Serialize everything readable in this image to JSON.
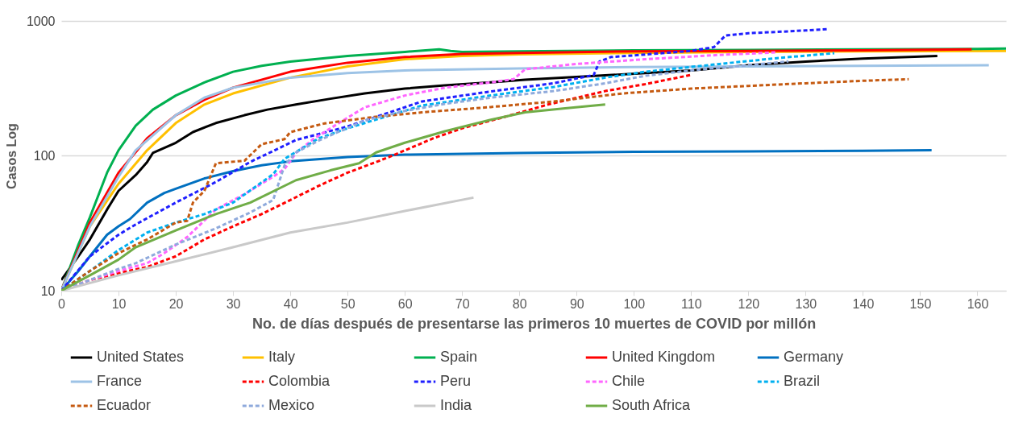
{
  "chart_data": {
    "type": "line",
    "xlabel": "No. de días después de presentarse las primeros 10 muertes de COVID por millón",
    "ylabel": "Casos Log",
    "log": "y",
    "xlim": [
      0,
      165
    ],
    "xticks": [
      0,
      10,
      20,
      30,
      40,
      50,
      60,
      70,
      80,
      90,
      100,
      110,
      120,
      130,
      140,
      150,
      160
    ],
    "ylim": [
      10,
      1000
    ],
    "yticks": [
      10,
      100,
      1000
    ],
    "grid": "y",
    "legend": "bottom",
    "series": [
      {
        "name": "United States",
        "color": "#000000",
        "line_style": "solid",
        "x": [
          0,
          3,
          5,
          8,
          10,
          13,
          15,
          16,
          20,
          23,
          27,
          32,
          36,
          41,
          47,
          53,
          60,
          67,
          75,
          81,
          90,
          102,
          110,
          120,
          130,
          140,
          153
        ],
        "values": [
          12,
          18,
          24,
          40,
          55,
          72,
          90,
          105,
          125,
          150,
          175,
          200,
          220,
          240,
          265,
          290,
          315,
          333,
          350,
          366,
          385,
          410,
          430,
          470,
          500,
          525,
          550
        ]
      },
      {
        "name": "Italy",
        "color": "#ffc000",
        "line_style": "solid",
        "x": [
          0,
          5,
          10,
          15,
          20,
          25,
          30,
          40,
          50,
          60,
          70,
          80,
          100,
          120,
          140,
          165
        ],
        "values": [
          10,
          30,
          62,
          110,
          175,
          240,
          290,
          380,
          460,
          520,
          550,
          565,
          580,
          590,
          595,
          600
        ]
      },
      {
        "name": "Spain",
        "color": "#00b050",
        "line_style": "solid",
        "x": [
          0,
          3,
          5,
          8,
          10,
          13,
          16,
          20,
          25,
          30,
          35,
          40,
          50,
          60,
          66,
          68,
          70,
          80,
          100,
          120,
          140,
          160,
          165
        ],
        "values": [
          10,
          22,
          35,
          75,
          110,
          167,
          220,
          280,
          350,
          420,
          465,
          500,
          550,
          590,
          615,
          600,
          590,
          595,
          605,
          610,
          615,
          620,
          625
        ]
      },
      {
        "name": "United Kingdom",
        "color": "#ff0000",
        "line_style": "solid",
        "x": [
          0,
          5,
          10,
          15,
          20,
          25,
          30,
          40,
          50,
          60,
          70,
          80,
          100,
          120,
          140,
          159
        ],
        "values": [
          10,
          32,
          75,
          135,
          200,
          260,
          320,
          420,
          490,
          540,
          570,
          580,
          595,
          600,
          605,
          615
        ]
      },
      {
        "name": "Germany",
        "color": "#0070c0",
        "line_style": "solid",
        "x": [
          0,
          3,
          5,
          8,
          10,
          12,
          15,
          18,
          20,
          25,
          30,
          35,
          40,
          50,
          60,
          80,
          100,
          120,
          140,
          152
        ],
        "values": [
          10,
          14,
          18,
          26,
          30,
          34,
          45,
          53,
          57,
          68,
          77,
          85,
          91,
          98,
          102,
          105,
          107,
          108,
          109,
          110
        ]
      },
      {
        "name": "France",
        "color": "#9dc3e6",
        "line_style": "solid",
        "x": [
          0,
          5,
          10,
          13,
          15,
          20,
          25,
          30,
          40,
          50,
          60,
          80,
          100,
          120,
          140,
          162
        ],
        "values": [
          10,
          30,
          70,
          110,
          130,
          200,
          270,
          320,
          380,
          410,
          430,
          445,
          455,
          460,
          465,
          470
        ]
      },
      {
        "name": "Colombia",
        "color": "#ff0000",
        "line_style": "dashed",
        "x": [
          0,
          5,
          10,
          15,
          20,
          25,
          30,
          35,
          40,
          45,
          50,
          55,
          58,
          65,
          70,
          77,
          85,
          95,
          102,
          110
        ],
        "values": [
          10,
          12,
          13.5,
          15,
          18,
          24,
          30,
          37,
          47,
          60,
          75,
          90,
          101,
          135,
          160,
          192,
          240,
          302,
          340,
          398
        ]
      },
      {
        "name": "Peru",
        "color": "#1f1fff",
        "line_style": "dashed",
        "x": [
          0,
          5,
          10,
          13,
          20,
          27,
          33,
          41,
          50,
          63,
          75,
          86,
          93,
          94,
          96,
          100,
          110,
          114,
          116,
          120,
          130,
          134
        ],
        "values": [
          10,
          18,
          26,
          31,
          45,
          64,
          90,
          131,
          165,
          253,
          300,
          345,
          398,
          500,
          540,
          555,
          600,
          640,
          780,
          810,
          850,
          870
        ]
      },
      {
        "name": "Chile",
        "color": "#ff66ff",
        "line_style": "dashed",
        "x": [
          0,
          5,
          10,
          15,
          18,
          22,
          27,
          32,
          37,
          39,
          41,
          44,
          48,
          53,
          60,
          67,
          75,
          79,
          81,
          90,
          102,
          115,
          125
        ],
        "values": [
          10,
          12,
          14,
          16,
          19,
          25,
          40,
          52,
          70,
          80,
          105,
          133,
          170,
          229,
          280,
          320,
          350,
          370,
          438,
          480,
          520,
          560,
          585
        ]
      },
      {
        "name": "Brazil",
        "color": "#00b0f0",
        "line_style": "dashed",
        "x": [
          0,
          5,
          10,
          15,
          20,
          25,
          30,
          37,
          39,
          45,
          50,
          63,
          75,
          86,
          95,
          102,
          115,
          125,
          135
        ],
        "values": [
          10,
          14,
          20,
          27,
          32,
          37,
          45,
          73,
          95,
          135,
          160,
          236,
          280,
          324,
          380,
          420,
          480,
          530,
          577
        ]
      },
      {
        "name": "Ecuador",
        "color": "#c55a11",
        "line_style": "dashed",
        "x": [
          0,
          5,
          10,
          15,
          20,
          22,
          23,
          25,
          27,
          32,
          35,
          39,
          40,
          46,
          55,
          63,
          75,
          86,
          98,
          110,
          120,
          130,
          140,
          148
        ],
        "values": [
          10,
          14,
          19,
          24,
          32,
          33,
          45,
          55,
          88,
          92,
          122,
          133,
          150,
          174,
          195,
          210,
          230,
          253,
          290,
          315,
          330,
          345,
          360,
          370
        ]
      },
      {
        "name": "Mexico",
        "color": "#8faadc",
        "line_style": "dashed",
        "x": [
          0,
          5,
          10,
          13,
          20,
          27,
          33,
          37,
          39,
          41,
          45,
          53,
          60,
          67,
          75,
          86,
          95,
          102,
          110,
          120,
          127
        ],
        "values": [
          10,
          12,
          14.5,
          16,
          22,
          29,
          38,
          47,
          85,
          106,
          130,
          183,
          215,
          243,
          270,
          302,
          345,
          392,
          430,
          470,
          502
        ]
      },
      {
        "name": "India",
        "color": "#c9c9c9",
        "line_style": "solid",
        "x": [
          0,
          10,
          20,
          30,
          40,
          50,
          60,
          72
        ],
        "values": [
          10,
          13,
          16.5,
          21,
          27,
          32,
          39,
          49
        ]
      },
      {
        "name": "South Africa",
        "color": "#70ad47",
        "line_style": "solid",
        "x": [
          0,
          5,
          10,
          13,
          20,
          27,
          33,
          41,
          47,
          52,
          55,
          60,
          67,
          75,
          81,
          88,
          95
        ],
        "values": [
          10,
          13,
          17,
          21,
          28,
          37,
          45,
          66,
          78,
          88,
          106,
          125,
          152,
          185,
          210,
          225,
          240
        ]
      }
    ]
  }
}
